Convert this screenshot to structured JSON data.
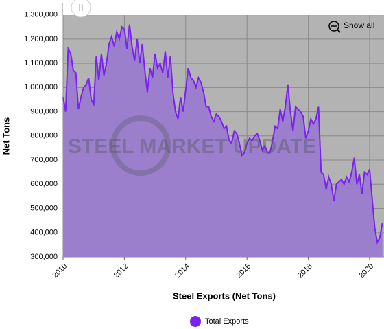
{
  "chart_data": {
    "type": "area",
    "xlabel": "Steel Exports (Net Tons)",
    "ylabel": "Net Tons",
    "watermark": "STEEL MARKET UPDATE",
    "button": "Show all",
    "xlim": [
      2010,
      2020.47
    ],
    "xticks": [
      2010,
      2012,
      2014,
      2016,
      2018,
      2020
    ],
    "ylim": [
      300000,
      1350000
    ],
    "yticks": [
      {
        "value": 300000,
        "label": "300,000"
      },
      {
        "value": 400000,
        "label": "400,000"
      },
      {
        "value": 500000,
        "label": "500,000"
      },
      {
        "value": 600000,
        "label": "600,000"
      },
      {
        "value": 700000,
        "label": "700,000"
      },
      {
        "value": 800000,
        "label": "800,000"
      },
      {
        "value": 900000,
        "label": "900,000"
      },
      {
        "value": 1000000,
        "label": "1,000,000"
      },
      {
        "value": 1100000,
        "label": "1,100,000"
      },
      {
        "value": 1200000,
        "label": "1,200,000"
      },
      {
        "value": 1300000,
        "label": "1,300,000"
      }
    ],
    "grid": true,
    "legend": "bottom",
    "x": [
      2010,
      2010.083,
      2010.167,
      2010.25,
      2010.333,
      2010.417,
      2010.5,
      2010.583,
      2010.667,
      2010.75,
      2010.833,
      2010.917,
      2011,
      2011.083,
      2011.167,
      2011.25,
      2011.333,
      2011.417,
      2011.5,
      2011.583,
      2011.667,
      2011.75,
      2011.833,
      2011.917,
      2012,
      2012.083,
      2012.167,
      2012.25,
      2012.333,
      2012.417,
      2012.5,
      2012.583,
      2012.667,
      2012.75,
      2012.833,
      2012.917,
      2013,
      2013.083,
      2013.167,
      2013.25,
      2013.333,
      2013.417,
      2013.5,
      2013.583,
      2013.667,
      2013.75,
      2013.833,
      2013.917,
      2014,
      2014.083,
      2014.167,
      2014.25,
      2014.333,
      2014.417,
      2014.5,
      2014.583,
      2014.667,
      2014.75,
      2014.833,
      2014.917,
      2015,
      2015.083,
      2015.167,
      2015.25,
      2015.333,
      2015.417,
      2015.5,
      2015.583,
      2015.667,
      2015.75,
      2015.833,
      2015.917,
      2016,
      2016.083,
      2016.167,
      2016.25,
      2016.333,
      2016.417,
      2016.5,
      2016.583,
      2016.667,
      2016.75,
      2016.833,
      2016.917,
      2017,
      2017.083,
      2017.167,
      2017.25,
      2017.333,
      2017.417,
      2017.5,
      2017.583,
      2017.667,
      2017.75,
      2017.833,
      2017.917,
      2018,
      2018.083,
      2018.167,
      2018.25,
      2018.333,
      2018.417,
      2018.5,
      2018.583,
      2018.667,
      2018.75,
      2018.833,
      2018.917,
      2019,
      2019.083,
      2019.167,
      2019.25,
      2019.333,
      2019.417,
      2019.5,
      2019.583,
      2019.667,
      2019.75,
      2019.833,
      2019.917,
      2020,
      2020.083,
      2020.167,
      2020.25,
      2020.333,
      2020.417
    ],
    "series": [
      {
        "name": "Total Exports",
        "color": "#7b22f0",
        "fill": "#9b7fcc",
        "values": [
          960000,
          900000,
          1160000,
          1140000,
          1070000,
          1060000,
          910000,
          960000,
          1000000,
          1010000,
          1040000,
          950000,
          930000,
          1130000,
          1030000,
          1140000,
          1050000,
          1100000,
          1180000,
          1210000,
          1170000,
          1230000,
          1200000,
          1250000,
          1240000,
          1160000,
          1260000,
          1170000,
          1110000,
          1200000,
          1100000,
          1180000,
          1070000,
          980000,
          1080000,
          1040000,
          1140000,
          1080000,
          1100000,
          1060000,
          1150000,
          1040000,
          1130000,
          980000,
          900000,
          870000,
          960000,
          900000,
          990000,
          1080000,
          1040000,
          1030000,
          1000000,
          1040000,
          1020000,
          980000,
          920000,
          920000,
          880000,
          860000,
          890000,
          880000,
          860000,
          830000,
          840000,
          780000,
          770000,
          820000,
          810000,
          770000,
          720000,
          730000,
          770000,
          790000,
          780000,
          800000,
          810000,
          780000,
          740000,
          760000,
          730000,
          730000,
          780000,
          840000,
          830000,
          910000,
          860000,
          920000,
          1010000,
          900000,
          820000,
          920000,
          910000,
          900000,
          880000,
          790000,
          820000,
          870000,
          850000,
          870000,
          920000,
          650000,
          640000,
          580000,
          630000,
          600000,
          530000,
          600000,
          610000,
          620000,
          600000,
          630000,
          610000,
          650000,
          710000,
          600000,
          640000,
          560000,
          650000,
          640000,
          660000,
          540000,
          420000,
          360000,
          380000,
          440000
        ]
      }
    ]
  }
}
